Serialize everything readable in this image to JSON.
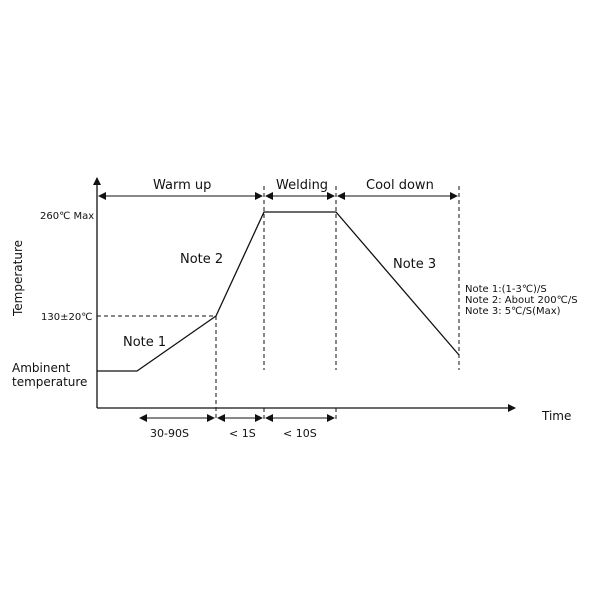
{
  "axes": {
    "y_title": "Temperature",
    "x_title": "Time",
    "y_labels": {
      "peak": "260℃ Max",
      "preheat": "130±20℃",
      "ambient_line1": "Ambinent",
      "ambient_line2": "temperature"
    }
  },
  "phases": {
    "warm_up": "Warm up",
    "welding": "Welding",
    "cool_down": "Cool down"
  },
  "curve_notes": {
    "note1": "Note 1",
    "note2": "Note 2",
    "note3": "Note 3"
  },
  "durations": {
    "preheat": "30-90S",
    "ramp": "< 1S",
    "welding": "< 10S"
  },
  "legend": {
    "note1": "Note 1:(1-3℃)/S",
    "note2": "Note 2: About 200℃/S",
    "note3": "Note 3: 5℃/S(Max)"
  }
}
